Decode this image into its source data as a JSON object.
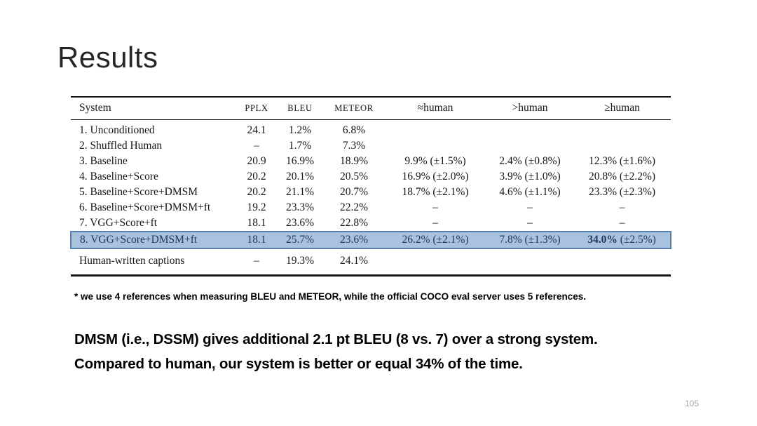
{
  "slide": {
    "title": "Results",
    "page_number": "105"
  },
  "colors": {
    "highlight_bg": "#a9c2de",
    "highlight_border": "#567fae",
    "highlight_text": "#20395f",
    "table_rule": "#161616",
    "page_number_text": "#a8a8a8"
  },
  "table": {
    "headers": [
      "System",
      "PPLX",
      "BLEU",
      "METEOR",
      "≈human",
      ">human",
      "≥human"
    ],
    "rows": [
      {
        "system": "1. Unconditioned",
        "pplx": "24.1",
        "bleu": "1.2%",
        "meteor": "6.8%",
        "approx": "",
        "gt": "",
        "geq": ""
      },
      {
        "system": "2. Shuffled Human",
        "pplx": "–",
        "bleu": "1.7%",
        "meteor": "7.3%",
        "approx": "",
        "gt": "",
        "geq": ""
      },
      {
        "system": "3. Baseline",
        "pplx": "20.9",
        "bleu": "16.9%",
        "meteor": "18.9%",
        "approx": "9.9% (±1.5%)",
        "gt": "2.4% (±0.8%)",
        "geq": "12.3% (±1.6%)"
      },
      {
        "system": "4. Baseline+Score",
        "pplx": "20.2",
        "bleu": "20.1%",
        "meteor": "20.5%",
        "approx": "16.9% (±2.0%)",
        "gt": "3.9% (±1.0%)",
        "geq": "20.8% (±2.2%)"
      },
      {
        "system": "5. Baseline+Score+DMSM",
        "pplx": "20.2",
        "bleu": "21.1%",
        "meteor": "20.7%",
        "approx": "18.7% (±2.1%)",
        "gt": "4.6% (±1.1%)",
        "geq": "23.3% (±2.3%)"
      },
      {
        "system": "6. Baseline+Score+DMSM+ft",
        "pplx": "19.2",
        "bleu": "23.3%",
        "meteor": "22.2%",
        "approx": "–",
        "gt": "–",
        "geq": "–"
      },
      {
        "system": "7. VGG+Score+ft",
        "pplx": "18.1",
        "bleu": "23.6%",
        "meteor": "22.8%",
        "approx": "–",
        "gt": "–",
        "geq": "–"
      },
      {
        "system": "8. VGG+Score+DMSM+ft",
        "pplx": "18.1",
        "bleu": "25.7%",
        "meteor": "23.6%",
        "approx": "26.2% (±2.1%)",
        "gt": "7.8% (±1.3%)",
        "geq_value": "34.0%",
        "geq_ci": "(±2.5%)"
      }
    ],
    "footer_row": {
      "system": "Human-written captions",
      "pplx": "–",
      "bleu": "19.3%",
      "meteor": "24.1%",
      "approx": "",
      "gt": "",
      "geq": ""
    }
  },
  "footnote": "* we use 4 references when measuring BLEU and METEOR, while the official COCO eval server uses 5 references.",
  "takeaway": {
    "line1": "DMSM (i.e., DSSM) gives additional 2.1 pt BLEU (8 vs. 7) over a strong system.",
    "line2": "Compared to human, our system is better or equal 34% of the time."
  }
}
